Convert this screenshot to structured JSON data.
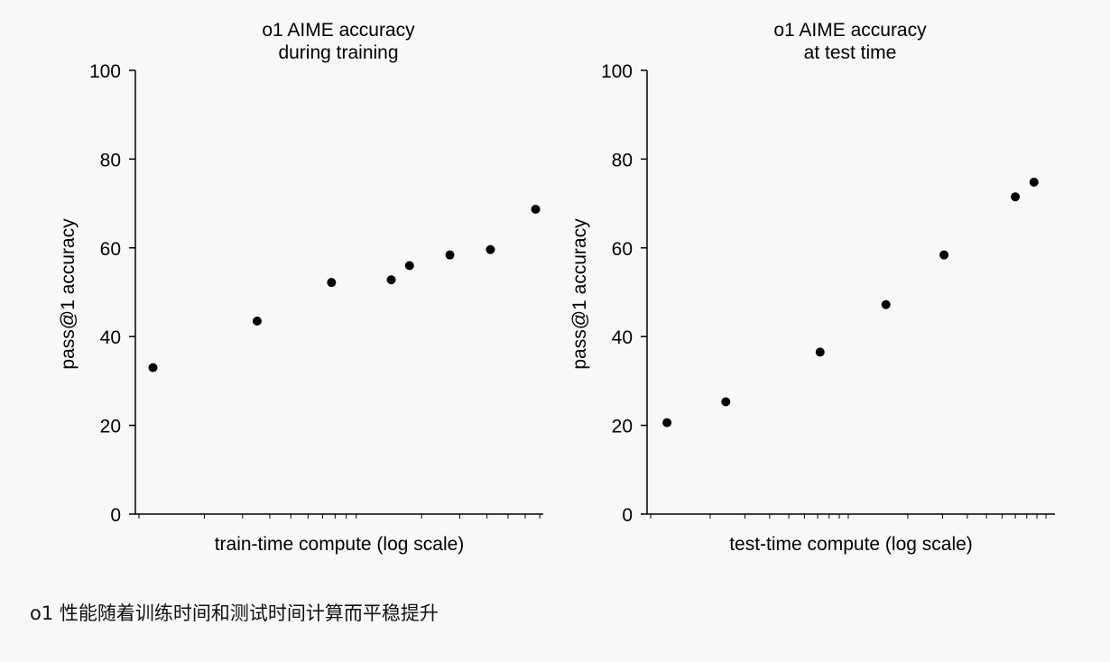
{
  "chart_data": [
    {
      "type": "scatter",
      "title": [
        "o1 AIME accuracy",
        "during training"
      ],
      "xlabel": "train-time compute (log scale)",
      "ylabel": "pass@1 accuracy",
      "yticks": [
        0,
        20,
        40,
        60,
        80,
        100
      ],
      "ylim": [
        0,
        100
      ],
      "xscale": "log",
      "xlim": [
        1,
        60
      ],
      "x": [
        1.16,
        3.5,
        7.7,
        14.5,
        17.6,
        27,
        41.5,
        67
      ],
      "y": [
        33,
        43.5,
        52.2,
        52.8,
        56,
        58.4,
        59.6,
        68.7
      ],
      "grid": false,
      "legend": "none"
    },
    {
      "type": "scatter",
      "title": [
        "o1 AIME accuracy",
        "at test time"
      ],
      "xlabel": "test-time compute (log scale)",
      "ylabel": "pass@1 accuracy",
      "yticks": [
        0,
        20,
        40,
        60,
        80,
        100
      ],
      "ylim": [
        0,
        100
      ],
      "xscale": "log",
      "xlim": [
        1,
        90
      ],
      "x": [
        1.21,
        2.4,
        7.2,
        15.5,
        30.5,
        70,
        87
      ],
      "y": [
        20.6,
        25.3,
        36.5,
        47.2,
        58.4,
        71.5,
        74.8
      ],
      "grid": false,
      "legend": "none"
    }
  ],
  "caption": "o1 性能随着训练时间和测试时间计算而平稳提升",
  "colors": {
    "marker": "#000000",
    "axis": "#000000",
    "background": "#f8f8f8"
  }
}
